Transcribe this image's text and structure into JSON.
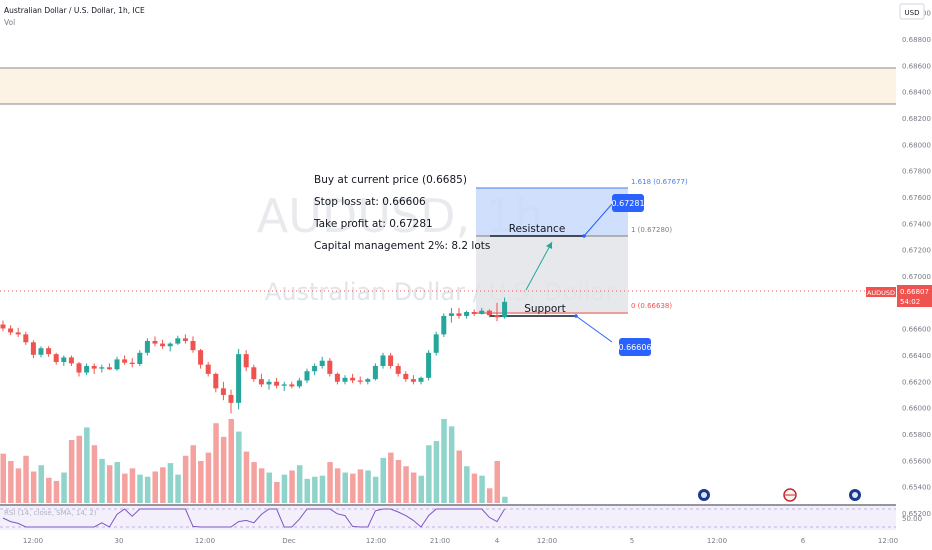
{
  "header": {
    "symbol_line": "Australian Dollar / U.S. Dollar, 1h, ICE",
    "vol_label": "Vol",
    "currency_button": "USD"
  },
  "watermark": {
    "ticker": "AUDUSD, 1h",
    "name": "Australian Dollar / U.S. Dollar"
  },
  "notes": {
    "buy": "Buy at current price (0.6685)",
    "stop": "Stop loss at: 0.66606",
    "take": "Take profit at: 0.67281",
    "capital": "Capital management 2%: 8.2 lots"
  },
  "annotations": {
    "resistance": "Resistance",
    "support": "Support",
    "take_profit_callout": "0.67281",
    "stop_loss_callout": "0.66606",
    "fib_1618": "1.618 (0.67677)",
    "fib_1": "1 (0.67280)",
    "fib_0": "0 (0.66638)"
  },
  "price_tag": {
    "symbol": "AUDUSD",
    "price": "0.66807",
    "countdown": "54:02"
  },
  "indicator": {
    "label": "RSI (14, close, SMA, 14, 2)",
    "level_label": "50.00"
  },
  "y_axis_labels": [
    "0.69000",
    "0.68800",
    "0.68600",
    "0.68400",
    "0.68200",
    "0.68000",
    "0.67800",
    "0.67600",
    "0.67400",
    "0.67200",
    "0.67000",
    "0.66800",
    "0.66600",
    "0.66400",
    "0.66200",
    "0.66000",
    "0.65800",
    "0.65600",
    "0.65400",
    "0.65200"
  ],
  "x_axis_labels": [
    "12:00",
    "30",
    "12:00",
    "Dec",
    "12:00",
    "21:00",
    "4",
    "12:00",
    "5",
    "12:00",
    "6",
    "12:00"
  ],
  "colors": {
    "up": "#26a69a",
    "down": "#ef5350",
    "up_volume": "#8fd3cb",
    "down_volume": "#f4a19f",
    "accent_blue": "#2962ff",
    "target_zone": "#c7d9fb",
    "neutral_zone": "#e3e4e8",
    "highlight_band": "#fdf3e4"
  },
  "chart_data": {
    "type": "candlestick",
    "interval": "1h",
    "ylim": [
      0.6515,
      0.691
    ],
    "candles": [
      {
        "o": 0.66635,
        "h": 0.66665,
        "l": 0.66585,
        "c": 0.66605
      },
      {
        "o": 0.66605,
        "h": 0.6663,
        "l": 0.66555,
        "c": 0.66575
      },
      {
        "o": 0.66575,
        "h": 0.6661,
        "l": 0.6654,
        "c": 0.6656
      },
      {
        "o": 0.6656,
        "h": 0.6658,
        "l": 0.6648,
        "c": 0.665
      },
      {
        "o": 0.665,
        "h": 0.66515,
        "l": 0.6638,
        "c": 0.66405
      },
      {
        "o": 0.66405,
        "h": 0.6647,
        "l": 0.66385,
        "c": 0.66455
      },
      {
        "o": 0.66455,
        "h": 0.6647,
        "l": 0.6639,
        "c": 0.6641
      },
      {
        "o": 0.6641,
        "h": 0.6642,
        "l": 0.6633,
        "c": 0.6635
      },
      {
        "o": 0.6635,
        "h": 0.664,
        "l": 0.6632,
        "c": 0.66385
      },
      {
        "o": 0.66385,
        "h": 0.664,
        "l": 0.6632,
        "c": 0.6634
      },
      {
        "o": 0.6634,
        "h": 0.6635,
        "l": 0.6624,
        "c": 0.6627
      },
      {
        "o": 0.6627,
        "h": 0.6634,
        "l": 0.6625,
        "c": 0.6632
      },
      {
        "o": 0.6632,
        "h": 0.6634,
        "l": 0.6626,
        "c": 0.663
      },
      {
        "o": 0.663,
        "h": 0.6633,
        "l": 0.6627,
        "c": 0.6631
      },
      {
        "o": 0.6631,
        "h": 0.6634,
        "l": 0.6629,
        "c": 0.66295
      },
      {
        "o": 0.66295,
        "h": 0.6639,
        "l": 0.66285,
        "c": 0.6637
      },
      {
        "o": 0.6637,
        "h": 0.664,
        "l": 0.6633,
        "c": 0.66345
      },
      {
        "o": 0.66345,
        "h": 0.6638,
        "l": 0.6631,
        "c": 0.66335
      },
      {
        "o": 0.66335,
        "h": 0.6644,
        "l": 0.6632,
        "c": 0.6642
      },
      {
        "o": 0.6642,
        "h": 0.6653,
        "l": 0.664,
        "c": 0.6651
      },
      {
        "o": 0.6651,
        "h": 0.66545,
        "l": 0.6647,
        "c": 0.6649
      },
      {
        "o": 0.6649,
        "h": 0.6652,
        "l": 0.6645,
        "c": 0.6647
      },
      {
        "o": 0.6647,
        "h": 0.665,
        "l": 0.6643,
        "c": 0.6649
      },
      {
        "o": 0.6649,
        "h": 0.6655,
        "l": 0.6648,
        "c": 0.6653
      },
      {
        "o": 0.6653,
        "h": 0.6656,
        "l": 0.6649,
        "c": 0.6651
      },
      {
        "o": 0.6651,
        "h": 0.66545,
        "l": 0.6642,
        "c": 0.6644
      },
      {
        "o": 0.6644,
        "h": 0.6645,
        "l": 0.663,
        "c": 0.6633
      },
      {
        "o": 0.6633,
        "h": 0.6635,
        "l": 0.6624,
        "c": 0.6626
      },
      {
        "o": 0.6626,
        "h": 0.6627,
        "l": 0.6612,
        "c": 0.6615
      },
      {
        "o": 0.6615,
        "h": 0.662,
        "l": 0.6606,
        "c": 0.661
      },
      {
        "o": 0.661,
        "h": 0.6614,
        "l": 0.6596,
        "c": 0.6604
      },
      {
        "o": 0.6604,
        "h": 0.6645,
        "l": 0.6599,
        "c": 0.6641
      },
      {
        "o": 0.6641,
        "h": 0.6644,
        "l": 0.6628,
        "c": 0.6631
      },
      {
        "o": 0.6631,
        "h": 0.6633,
        "l": 0.662,
        "c": 0.6622
      },
      {
        "o": 0.6622,
        "h": 0.6626,
        "l": 0.6616,
        "c": 0.6618
      },
      {
        "o": 0.6618,
        "h": 0.6622,
        "l": 0.6614,
        "c": 0.662
      },
      {
        "o": 0.662,
        "h": 0.6623,
        "l": 0.6615,
        "c": 0.6617
      },
      {
        "o": 0.6617,
        "h": 0.662,
        "l": 0.6613,
        "c": 0.6618
      },
      {
        "o": 0.6618,
        "h": 0.662,
        "l": 0.6615,
        "c": 0.66165
      },
      {
        "o": 0.66165,
        "h": 0.6623,
        "l": 0.6615,
        "c": 0.6621
      },
      {
        "o": 0.6621,
        "h": 0.663,
        "l": 0.6619,
        "c": 0.6628
      },
      {
        "o": 0.6628,
        "h": 0.6634,
        "l": 0.6625,
        "c": 0.6632
      },
      {
        "o": 0.6632,
        "h": 0.6639,
        "l": 0.663,
        "c": 0.6636
      },
      {
        "o": 0.6636,
        "h": 0.6638,
        "l": 0.6624,
        "c": 0.6626
      },
      {
        "o": 0.6626,
        "h": 0.6627,
        "l": 0.6618,
        "c": 0.662
      },
      {
        "o": 0.662,
        "h": 0.6625,
        "l": 0.6618,
        "c": 0.6623
      },
      {
        "o": 0.6623,
        "h": 0.6626,
        "l": 0.6619,
        "c": 0.6621
      },
      {
        "o": 0.6621,
        "h": 0.6624,
        "l": 0.6618,
        "c": 0.662
      },
      {
        "o": 0.662,
        "h": 0.6623,
        "l": 0.6618,
        "c": 0.6622
      },
      {
        "o": 0.6622,
        "h": 0.6634,
        "l": 0.6621,
        "c": 0.6632
      },
      {
        "o": 0.6632,
        "h": 0.6642,
        "l": 0.663,
        "c": 0.664
      },
      {
        "o": 0.664,
        "h": 0.6642,
        "l": 0.663,
        "c": 0.6632
      },
      {
        "o": 0.6632,
        "h": 0.6634,
        "l": 0.6624,
        "c": 0.6626
      },
      {
        "o": 0.6626,
        "h": 0.6628,
        "l": 0.662,
        "c": 0.6622
      },
      {
        "o": 0.6622,
        "h": 0.6625,
        "l": 0.6618,
        "c": 0.662
      },
      {
        "o": 0.662,
        "h": 0.6624,
        "l": 0.6618,
        "c": 0.6623
      },
      {
        "o": 0.6623,
        "h": 0.6644,
        "l": 0.6621,
        "c": 0.6642
      },
      {
        "o": 0.6642,
        "h": 0.6658,
        "l": 0.664,
        "c": 0.6656
      },
      {
        "o": 0.6656,
        "h": 0.6672,
        "l": 0.6654,
        "c": 0.667
      },
      {
        "o": 0.667,
        "h": 0.6676,
        "l": 0.6665,
        "c": 0.6672
      },
      {
        "o": 0.6672,
        "h": 0.6676,
        "l": 0.6668,
        "c": 0.667
      },
      {
        "o": 0.667,
        "h": 0.6674,
        "l": 0.6668,
        "c": 0.6673
      },
      {
        "o": 0.6673,
        "h": 0.6675,
        "l": 0.667,
        "c": 0.66715
      },
      {
        "o": 0.66715,
        "h": 0.6676,
        "l": 0.6671,
        "c": 0.6674
      },
      {
        "o": 0.6674,
        "h": 0.6675,
        "l": 0.6669,
        "c": 0.66705
      },
      {
        "o": 0.66705,
        "h": 0.668,
        "l": 0.6666,
        "c": 0.6669
      },
      {
        "o": 0.6669,
        "h": 0.6684,
        "l": 0.6668,
        "c": 0.66807
      }
    ],
    "volumes_relative": [
      0.47,
      0.4,
      0.33,
      0.45,
      0.3,
      0.36,
      0.24,
      0.21,
      0.29,
      0.6,
      0.64,
      0.72,
      0.55,
      0.42,
      0.36,
      0.39,
      0.28,
      0.33,
      0.27,
      0.25,
      0.3,
      0.34,
      0.38,
      0.27,
      0.45,
      0.55,
      0.4,
      0.48,
      0.76,
      0.63,
      0.8,
      0.68,
      0.49,
      0.39,
      0.33,
      0.29,
      0.2,
      0.27,
      0.31,
      0.36,
      0.23,
      0.25,
      0.26,
      0.39,
      0.33,
      0.29,
      0.28,
      0.32,
      0.31,
      0.25,
      0.43,
      0.48,
      0.41,
      0.35,
      0.29,
      0.26,
      0.55,
      0.59,
      0.8,
      0.73,
      0.5,
      0.35,
      0.28,
      0.26,
      0.14,
      0.4,
      0.06
    ],
    "price_levels": {
      "take_profit": 0.67281,
      "stop_loss": 0.66606,
      "entry": 0.6685,
      "fib_1618": 0.67677,
      "fib_1": 0.6728,
      "fib_0": 0.66638,
      "highlight_band": [
        0.684,
        0.687
      ]
    }
  }
}
